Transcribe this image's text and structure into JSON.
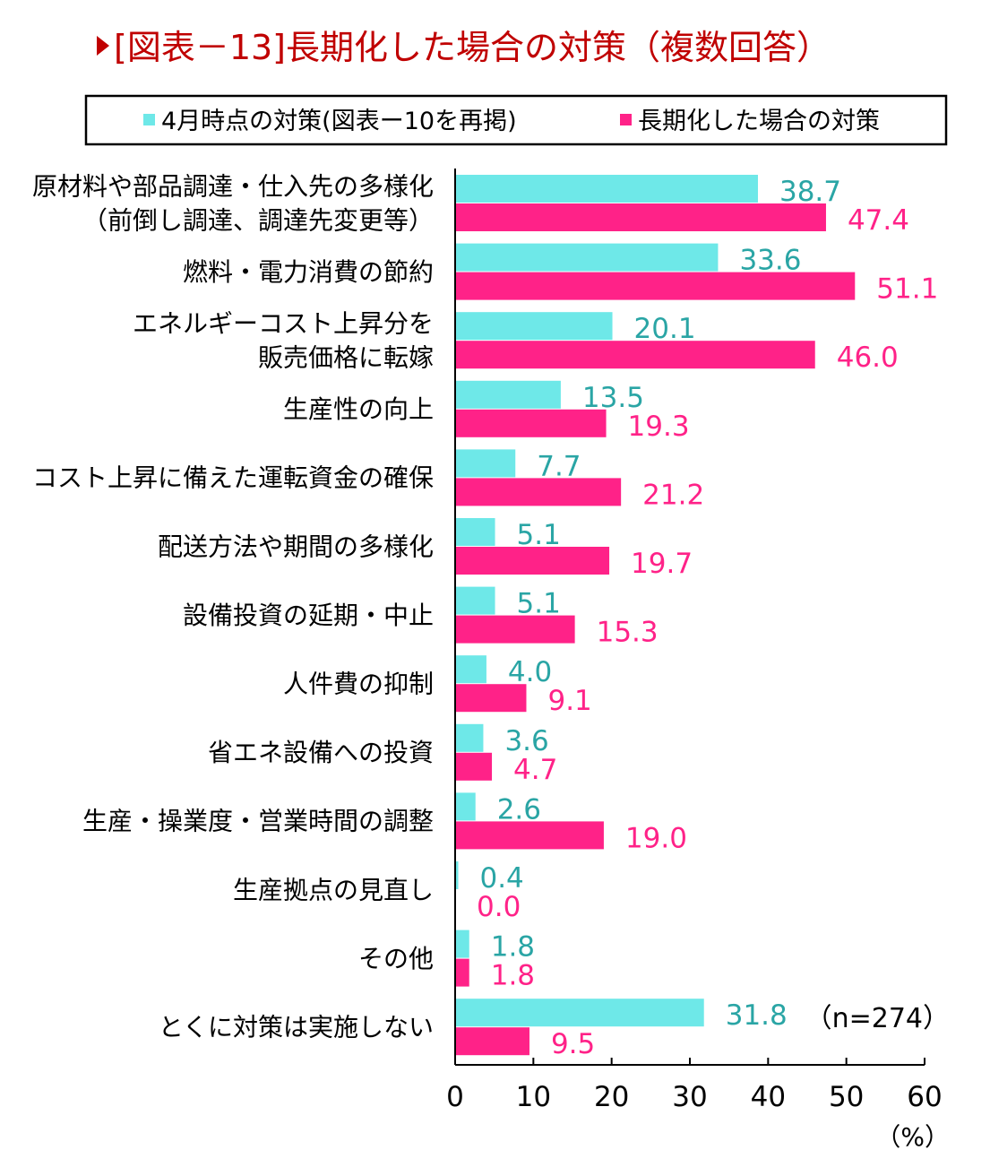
{
  "chart_data": {
    "type": "bar",
    "orientation": "horizontal",
    "title": "[図表－13]長期化した場合の対策（複数回答）",
    "categories": [
      "原材料や部品調達・仕入先の多様化\n（前倒し調達、調達先変更等）",
      "燃料・電力消費の節約",
      "エネルギーコスト上昇分を\n販売価格に転嫁",
      "生産性の向上",
      "コスト上昇に備えた運転資金の確保",
      "配送方法や期間の多様化",
      "設備投資の延期・中止",
      "人件費の抑制",
      "省エネ設備への投資",
      "生産・操業度・営業時間の調整",
      "生産拠点の見直し",
      "その他",
      "とくに対策は実施しない"
    ],
    "series": [
      {
        "name": "4月時点の対策(図表ー10を再掲)",
        "color": "#6EE8E8",
        "label_color": "#2AA5A5",
        "values": [
          38.7,
          33.6,
          20.1,
          13.5,
          7.7,
          5.1,
          5.1,
          4.0,
          3.6,
          2.6,
          0.4,
          1.8,
          31.8
        ]
      },
      {
        "name": "長期化した場合の対策",
        "color": "#FF2288",
        "label_color": "#FF2288",
        "values": [
          47.4,
          51.1,
          46.0,
          19.3,
          21.2,
          19.7,
          15.3,
          9.1,
          4.7,
          19.0,
          0.0,
          1.8,
          9.5
        ]
      }
    ],
    "xlim": [
      0,
      60
    ],
    "xticks": [
      0,
      10,
      20,
      30,
      40,
      50,
      60
    ],
    "xlabel": "（%）",
    "annotation": "（n=274）",
    "legend_position": "top",
    "grid": false,
    "title_color": "#C00000"
  }
}
